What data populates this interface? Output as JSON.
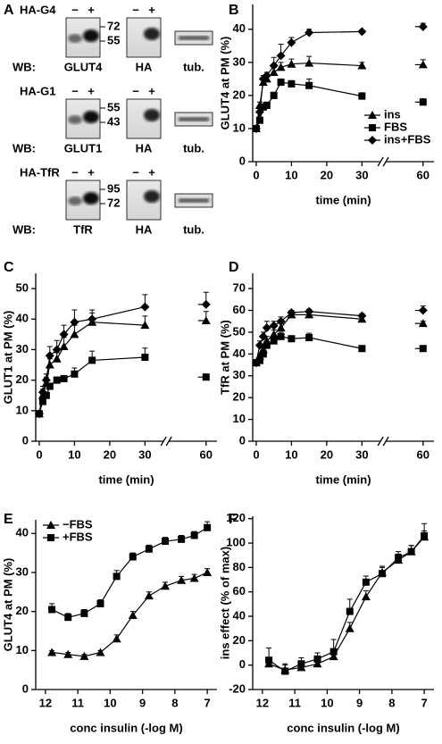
{
  "panel_a": "A",
  "blots": [
    {
      "construct": "HA-G4",
      "signs": [
        "−",
        "+",
        "−",
        "+"
      ],
      "markers": [
        "72",
        "55"
      ],
      "wb": "WB:",
      "lanes": [
        "GLUT4",
        "HA",
        "tub."
      ]
    },
    {
      "construct": "HA-G1",
      "signs": [
        "−",
        "+",
        "−",
        "+"
      ],
      "markers": [
        "55",
        "43"
      ],
      "wb": "WB:",
      "lanes": [
        "GLUT1",
        "HA",
        "tub."
      ]
    },
    {
      "construct": "HA-TfR",
      "signs": [
        "−",
        "+",
        "−",
        "+"
      ],
      "markers": [
        "95",
        "72"
      ],
      "wb": "WB:",
      "lanes": [
        "TfR",
        "HA",
        "tub."
      ]
    }
  ],
  "chart_data": [
    {
      "type": "line",
      "panel": "B",
      "ylabel": "GLUT4 at PM (%)",
      "xlabel": "time (min)",
      "x": [
        0,
        1,
        2,
        3,
        5,
        7,
        10,
        15,
        30,
        60
      ],
      "xlim": [
        -1,
        61
      ],
      "xbreak": [
        34,
        57
      ],
      "xticks": [
        0,
        10,
        20,
        30,
        60
      ],
      "ylim": [
        0,
        47.5
      ],
      "yticks": [
        0,
        10,
        20,
        30,
        40
      ],
      "legend": "lower right",
      "series": [
        {
          "name": "ins",
          "marker": "triangle",
          "color": "#000000",
          "values": [
            10,
            17,
            24,
            25,
            27,
            28.5,
            29.5,
            29.8,
            29,
            29.3
          ],
          "errors": [
            0.5,
            1,
            1,
            1,
            1.5,
            1.5,
            1.5,
            2,
            1,
            1.5
          ]
        },
        {
          "name": "FBS",
          "marker": "square",
          "color": "#000000",
          "values": [
            10,
            12.5,
            16.5,
            17,
            20,
            24,
            23.5,
            23,
            19.8,
            18
          ],
          "errors": [
            0.5,
            1,
            1,
            1,
            1,
            1,
            1,
            2,
            1,
            1
          ]
        },
        {
          "name": "ins+FBS",
          "marker": "diamond",
          "color": "#000000",
          "values": [
            10,
            15,
            25,
            26,
            29,
            32,
            36,
            39,
            39.3,
            40.8
          ],
          "errors": [
            0.5,
            1,
            1,
            1,
            2.5,
            3.5,
            1.5,
            1,
            0.5,
            1
          ]
        }
      ]
    },
    {
      "type": "line",
      "panel": "C",
      "ylabel": "GLUT1 at PM (%)",
      "xlabel": "time (min)",
      "x": [
        0,
        1,
        2,
        3,
        5,
        7,
        10,
        15,
        30,
        60
      ],
      "xlim": [
        -1,
        61
      ],
      "xbreak": [
        34,
        57
      ],
      "xticks": [
        0,
        10,
        20,
        30,
        60
      ],
      "ylim": [
        0,
        55
      ],
      "yticks": [
        0,
        10,
        20,
        30,
        40,
        50
      ],
      "series": [
        {
          "marker": "triangle",
          "color": "#000000",
          "values": [
            9,
            15,
            19,
            25,
            27,
            31,
            35,
            39,
            38,
            39.5
          ],
          "errors": [
            1,
            2,
            2,
            2,
            2,
            3,
            3,
            3,
            3,
            3
          ]
        },
        {
          "marker": "square",
          "color": "#000000",
          "values": [
            9,
            13,
            15,
            18,
            20,
            20.5,
            22,
            26.5,
            27.5,
            21
          ],
          "errors": [
            1,
            1,
            1,
            1,
            1,
            1,
            2,
            3,
            3,
            1
          ]
        },
        {
          "marker": "diamond",
          "color": "#000000",
          "values": [
            9,
            16,
            20,
            28,
            30,
            35,
            39,
            40,
            44,
            44.8
          ],
          "errors": [
            1,
            2,
            2,
            3,
            3,
            3,
            4,
            3,
            4,
            4
          ]
        }
      ]
    },
    {
      "type": "line",
      "panel": "D",
      "ylabel": "TfR at PM (%)",
      "xlabel": "time (min)",
      "x": [
        0,
        1,
        2,
        3,
        5,
        7,
        10,
        15,
        30,
        60
      ],
      "xlim": [
        -1,
        61
      ],
      "xbreak": [
        34,
        57
      ],
      "xticks": [
        0,
        10,
        20,
        30,
        60
      ],
      "ylim": [
        0,
        77
      ],
      "yticks": [
        0,
        10,
        20,
        30,
        40,
        50,
        60,
        70
      ],
      "series": [
        {
          "marker": "triangle",
          "color": "#000000",
          "values": [
            36,
            39,
            42,
            46,
            49,
            52,
            58,
            58,
            56,
            54
          ],
          "errors": [
            1,
            1,
            1,
            2,
            2,
            2,
            1,
            1,
            1,
            1
          ]
        },
        {
          "marker": "square",
          "color": "#000000",
          "values": [
            36,
            37,
            40,
            44,
            46,
            48,
            47,
            47.5,
            42.5,
            42.5
          ],
          "errors": [
            1,
            1,
            1,
            1,
            1,
            2,
            1,
            2,
            1,
            1
          ]
        },
        {
          "marker": "diamond",
          "color": "#000000",
          "values": [
            36,
            44,
            48,
            52,
            53,
            55,
            59,
            59.5,
            57.5,
            60
          ],
          "errors": [
            1,
            2,
            2,
            3,
            2,
            2,
            1,
            1,
            1,
            2
          ]
        }
      ]
    },
    {
      "type": "line",
      "panel": "E",
      "ylabel": "GLUT4 at PM (%)",
      "xlabel": "conc insulin (-log M)",
      "x": [
        11.8,
        11.3,
        10.8,
        10.3,
        9.8,
        9.3,
        8.8,
        8.3,
        7.8,
        7.4,
        7.0
      ],
      "xlim": [
        12.3,
        6.7
      ],
      "xticks": [
        12,
        11,
        10,
        9,
        8,
        7
      ],
      "ylim": [
        0,
        43.5
      ],
      "yticks": [
        0,
        10,
        20,
        30,
        40
      ],
      "legend": "upper left",
      "series": [
        {
          "name": "−FBS",
          "marker": "triangle",
          "color": "#000000",
          "values": [
            9.5,
            9,
            8.5,
            9.5,
            13,
            19,
            24,
            26.5,
            28,
            28.5,
            30
          ],
          "errors": [
            0.5,
            0.5,
            0.5,
            0.5,
            1,
            1,
            1,
            1,
            1,
            1,
            1
          ]
        },
        {
          "name": "+FBS",
          "marker": "square",
          "color": "#000000",
          "values": [
            20.5,
            18.5,
            19.5,
            22,
            29,
            34,
            36,
            38,
            38.5,
            39.5,
            41.5
          ],
          "errors": [
            1.5,
            1,
            1,
            1,
            1.5,
            1,
            1,
            1,
            1,
            1,
            1.5
          ]
        }
      ]
    },
    {
      "type": "line",
      "panel": "F",
      "ylabel": "ins effect (% of max)",
      "xlabel": "conc insulin (-log M)",
      "x": [
        11.8,
        11.3,
        10.8,
        10.3,
        9.8,
        9.3,
        8.8,
        8.3,
        7.8,
        7.4,
        7.0
      ],
      "xlim": [
        12.3,
        6.7
      ],
      "xticks": [
        12,
        11,
        10,
        9,
        8,
        7
      ],
      "ylim": [
        -20,
        122
      ],
      "yticks": [
        -20,
        0,
        20,
        40,
        60,
        80,
        100,
        120
      ],
      "series": [
        {
          "marker": "triangle",
          "color": "#000000",
          "values": [
            1,
            -4,
            -2,
            1,
            7,
            30,
            56,
            76,
            86,
            93,
            105
          ],
          "errors": [
            5,
            5,
            5,
            5,
            5,
            5,
            5,
            5,
            5,
            5,
            5
          ]
        },
        {
          "marker": "square",
          "color": "#000000",
          "values": [
            4,
            -5,
            1,
            5,
            11,
            44,
            68,
            75,
            88,
            93,
            106
          ],
          "errors": [
            10,
            5,
            5,
            5,
            10,
            10,
            5,
            5,
            5,
            5,
            10
          ]
        }
      ]
    }
  ]
}
